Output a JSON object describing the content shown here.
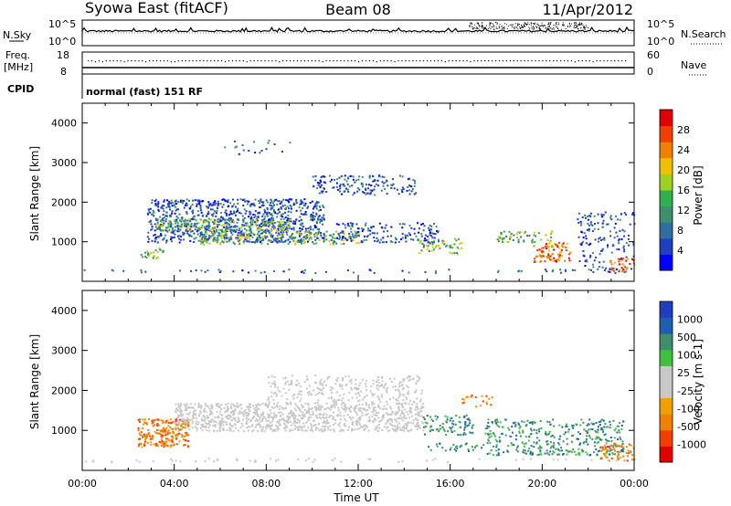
{
  "header": {
    "station": "Syowa East (fitACF)",
    "beam": "Beam 08",
    "date": "11/Apr/2012"
  },
  "nsky_panel": {
    "left_label": "N.Sky",
    "right_label": "N.Search",
    "left_ticks": [
      "10^5",
      "10^0"
    ],
    "right_ticks": [
      "10^5",
      "10^0"
    ]
  },
  "freq_panel": {
    "left_label_1": "Freq.",
    "left_label_2": "[MHz]",
    "right_label": "Nave",
    "left_ticks": [
      "18",
      "8"
    ],
    "right_ticks": [
      "60",
      "0"
    ]
  },
  "cpid": {
    "label": "CPID",
    "value": "normal (fast) 151 RF"
  },
  "colors": {
    "power_scale": [
      "#0000ff",
      "#1f3fbf",
      "#2f6f9f",
      "#3f8f6f",
      "#2faf4f",
      "#a0d020",
      "#f0c000",
      "#f08000",
      "#f04000",
      "#e00000"
    ],
    "velocity_scale": [
      "#e00000",
      "#f04000",
      "#f08000",
      "#f0a000",
      "#c8c8c8",
      "#c8c8c8",
      "#40c040",
      "#3f8f6f",
      "#1f5faf",
      "#1f3fbf"
    ]
  },
  "chart_data": [
    {
      "type": "heatmap",
      "name": "power",
      "ylabel": "Slant Range [km]",
      "ylim": [
        0,
        4500
      ],
      "yticks": [
        1000,
        2000,
        3000,
        4000
      ],
      "xlim": [
        0,
        24
      ],
      "colorbar": {
        "label": "Power [dB]",
        "range": [
          0,
          32
        ],
        "ticks": [
          "4",
          "8",
          "12",
          "16",
          "20",
          "24",
          "28"
        ]
      }
    },
    {
      "type": "heatmap",
      "name": "velocity",
      "ylabel": "Slant Range [km]",
      "ylim": [
        0,
        4500
      ],
      "yticks": [
        1000,
        2000,
        3000,
        4000
      ],
      "xlim": [
        0,
        24
      ],
      "xlabel": "Time UT",
      "xticks": [
        "00:00",
        "04:00",
        "08:00",
        "12:00",
        "16:00",
        "20:00",
        "00:00"
      ],
      "colorbar": {
        "label": "Velocity [m s-1]",
        "ticks": [
          "1000",
          "500",
          "100",
          "25",
          "-25",
          "-100",
          "-500",
          "-1000"
        ]
      }
    }
  ]
}
